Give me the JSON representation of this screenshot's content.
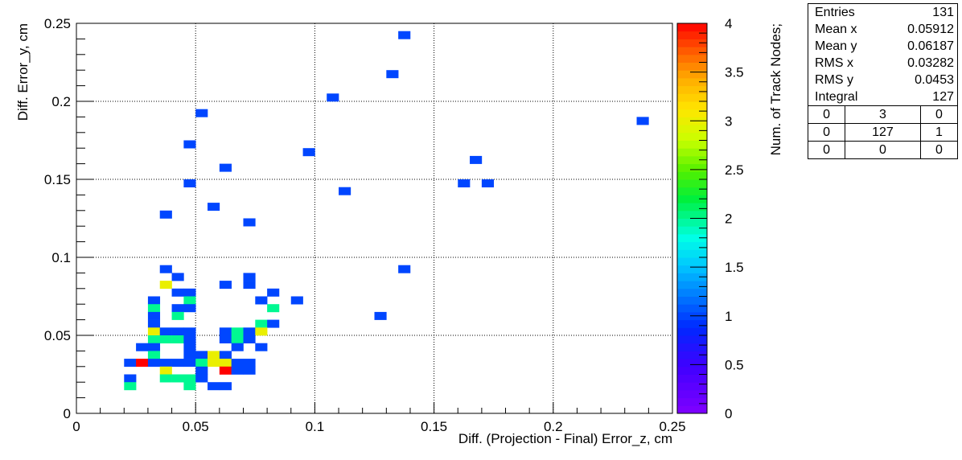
{
  "chart_data": {
    "type": "heatmap",
    "xlabel": "Diff. (Projection - Final) Error_z, cm",
    "ylabel": "Diff. Error_y, cm",
    "zlabel": "Num. of Track Nodes;",
    "xlim": [
      0,
      0.25
    ],
    "ylim": [
      0,
      0.25
    ],
    "zlim": [
      0,
      4
    ],
    "bin_width": 0.005,
    "x_ticks": [
      "0",
      "0.05",
      "0.1",
      "0.15",
      "0.2",
      "0.25"
    ],
    "y_ticks": [
      "0",
      "0.05",
      "0.1",
      "0.15",
      "0.2",
      "0.25"
    ],
    "z_ticks": [
      "0",
      "0.5",
      "1",
      "1.5",
      "2",
      "2.5",
      "3",
      "3.5",
      "4"
    ],
    "grid": true,
    "bins": [
      [
        0.135,
        0.24,
        1
      ],
      [
        0.13,
        0.215,
        1
      ],
      [
        0.105,
        0.2,
        1
      ],
      [
        0.05,
        0.19,
        1
      ],
      [
        0.235,
        0.185,
        1
      ],
      [
        0.045,
        0.17,
        1
      ],
      [
        0.095,
        0.165,
        1
      ],
      [
        0.165,
        0.16,
        1
      ],
      [
        0.06,
        0.155,
        1
      ],
      [
        0.045,
        0.145,
        1
      ],
      [
        0.16,
        0.145,
        1
      ],
      [
        0.17,
        0.145,
        1
      ],
      [
        0.11,
        0.14,
        1
      ],
      [
        0.055,
        0.13,
        1
      ],
      [
        0.035,
        0.125,
        1
      ],
      [
        0.07,
        0.12,
        1
      ],
      [
        0.035,
        0.09,
        1
      ],
      [
        0.135,
        0.09,
        1
      ],
      [
        0.04,
        0.085,
        1
      ],
      [
        0.07,
        0.085,
        1
      ],
      [
        0.035,
        0.08,
        3
      ],
      [
        0.06,
        0.08,
        1
      ],
      [
        0.07,
        0.08,
        1
      ],
      [
        0.04,
        0.075,
        1
      ],
      [
        0.045,
        0.075,
        1
      ],
      [
        0.08,
        0.075,
        1
      ],
      [
        0.03,
        0.07,
        1
      ],
      [
        0.045,
        0.07,
        2
      ],
      [
        0.075,
        0.07,
        1
      ],
      [
        0.09,
        0.07,
        1
      ],
      [
        0.03,
        0.065,
        2
      ],
      [
        0.04,
        0.065,
        1
      ],
      [
        0.045,
        0.065,
        1
      ],
      [
        0.08,
        0.065,
        2
      ],
      [
        0.03,
        0.06,
        1
      ],
      [
        0.04,
        0.06,
        2
      ],
      [
        0.125,
        0.06,
        1
      ],
      [
        0.03,
        0.055,
        1
      ],
      [
        0.075,
        0.055,
        2
      ],
      [
        0.08,
        0.055,
        1
      ],
      [
        0.03,
        0.05,
        3
      ],
      [
        0.035,
        0.05,
        1
      ],
      [
        0.04,
        0.05,
        1
      ],
      [
        0.045,
        0.05,
        1
      ],
      [
        0.06,
        0.05,
        1
      ],
      [
        0.065,
        0.05,
        2
      ],
      [
        0.07,
        0.05,
        1
      ],
      [
        0.075,
        0.05,
        3
      ],
      [
        0.03,
        0.045,
        2
      ],
      [
        0.035,
        0.045,
        2
      ],
      [
        0.04,
        0.045,
        2
      ],
      [
        0.045,
        0.045,
        1
      ],
      [
        0.06,
        0.045,
        1
      ],
      [
        0.065,
        0.045,
        2
      ],
      [
        0.07,
        0.045,
        1
      ],
      [
        0.025,
        0.04,
        1
      ],
      [
        0.03,
        0.04,
        1
      ],
      [
        0.045,
        0.04,
        1
      ],
      [
        0.065,
        0.04,
        1
      ],
      [
        0.075,
        0.04,
        1
      ],
      [
        0.03,
        0.035,
        2
      ],
      [
        0.045,
        0.035,
        1
      ],
      [
        0.05,
        0.035,
        1
      ],
      [
        0.055,
        0.035,
        3
      ],
      [
        0.06,
        0.035,
        1
      ],
      [
        0.02,
        0.03,
        1
      ],
      [
        0.025,
        0.03,
        4
      ],
      [
        0.03,
        0.03,
        1
      ],
      [
        0.035,
        0.03,
        1
      ],
      [
        0.04,
        0.03,
        1
      ],
      [
        0.045,
        0.03,
        1
      ],
      [
        0.05,
        0.03,
        2
      ],
      [
        0.055,
        0.03,
        3
      ],
      [
        0.06,
        0.03,
        3
      ],
      [
        0.065,
        0.03,
        1
      ],
      [
        0.07,
        0.03,
        1
      ],
      [
        0.035,
        0.025,
        3
      ],
      [
        0.05,
        0.025,
        1
      ],
      [
        0.06,
        0.025,
        4
      ],
      [
        0.065,
        0.025,
        1
      ],
      [
        0.07,
        0.025,
        1
      ],
      [
        0.02,
        0.02,
        1
      ],
      [
        0.035,
        0.02,
        2
      ],
      [
        0.04,
        0.02,
        2
      ],
      [
        0.045,
        0.02,
        2
      ],
      [
        0.05,
        0.02,
        1
      ],
      [
        0.02,
        0.015,
        2
      ],
      [
        0.045,
        0.015,
        2
      ],
      [
        0.055,
        0.015,
        1
      ],
      [
        0.06,
        0.015,
        1
      ]
    ]
  },
  "stats": {
    "rows": [
      {
        "label": "Entries",
        "value": "131"
      },
      {
        "label": "Mean x",
        "value": "0.05912"
      },
      {
        "label": "Mean y",
        "value": "0.06187"
      },
      {
        "label": "RMS x",
        "value": "0.03282"
      },
      {
        "label": "RMS y",
        "value": "0.0453"
      },
      {
        "label": "Integral",
        "value": "127"
      }
    ],
    "grid": [
      [
        "0",
        "3",
        "0"
      ],
      [
        "0",
        "127",
        "1"
      ],
      [
        "0",
        "0",
        "0"
      ]
    ]
  }
}
